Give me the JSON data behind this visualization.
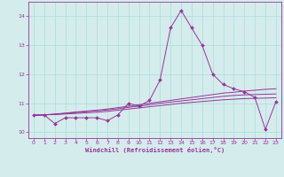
{
  "xlabel": "Windchill (Refroidissement éolien,°C)",
  "background_color": "#d4ecec",
  "line_color": "#993399",
  "grid_color": "#aadddd",
  "xlim": [
    -0.5,
    23.5
  ],
  "ylim": [
    9.8,
    14.5
  ],
  "yticks": [
    10,
    11,
    12,
    13,
    14
  ],
  "xticks": [
    0,
    1,
    2,
    3,
    4,
    5,
    6,
    7,
    8,
    9,
    10,
    11,
    12,
    13,
    14,
    15,
    16,
    17,
    18,
    19,
    20,
    21,
    22,
    23
  ],
  "series": {
    "main": {
      "x": [
        0,
        1,
        2,
        3,
        4,
        5,
        6,
        7,
        8,
        9,
        10,
        11,
        12,
        13,
        14,
        15,
        16,
        17,
        18,
        19,
        20,
        21,
        22,
        23
      ],
      "y": [
        10.6,
        10.6,
        10.3,
        10.5,
        10.5,
        10.5,
        10.5,
        10.4,
        10.6,
        11.0,
        10.9,
        11.1,
        11.8,
        13.6,
        14.2,
        13.6,
        13.0,
        12.0,
        11.65,
        11.5,
        11.4,
        11.2,
        10.1,
        11.05
      ]
    },
    "smooth1": {
      "x": [
        0,
        1,
        2,
        3,
        4,
        5,
        6,
        7,
        8,
        9,
        10,
        11,
        12,
        13,
        14,
        15,
        16,
        17,
        18,
        19,
        20,
        21,
        22,
        23
      ],
      "y": [
        10.58,
        10.6,
        10.63,
        10.66,
        10.7,
        10.73,
        10.76,
        10.8,
        10.85,
        10.9,
        10.95,
        11.0,
        11.05,
        11.1,
        11.15,
        11.2,
        11.25,
        11.3,
        11.35,
        11.38,
        11.42,
        11.45,
        11.48,
        11.5
      ]
    },
    "smooth2": {
      "x": [
        0,
        1,
        2,
        3,
        4,
        5,
        6,
        7,
        8,
        9,
        10,
        11,
        12,
        13,
        14,
        15,
        16,
        17,
        18,
        19,
        20,
        21,
        22,
        23
      ],
      "y": [
        10.58,
        10.6,
        10.62,
        10.65,
        10.68,
        10.71,
        10.74,
        10.77,
        10.81,
        10.86,
        10.9,
        10.95,
        11.0,
        11.04,
        11.08,
        11.12,
        11.16,
        11.2,
        11.24,
        11.27,
        11.29,
        11.3,
        11.31,
        11.32
      ]
    },
    "smooth3": {
      "x": [
        0,
        1,
        2,
        3,
        4,
        5,
        6,
        7,
        8,
        9,
        10,
        11,
        12,
        13,
        14,
        15,
        16,
        17,
        18,
        19,
        20,
        21,
        22,
        23
      ],
      "y": [
        10.58,
        10.6,
        10.61,
        10.63,
        10.65,
        10.67,
        10.69,
        10.72,
        10.76,
        10.8,
        10.84,
        10.88,
        10.92,
        10.96,
        11.0,
        11.03,
        11.06,
        11.09,
        11.12,
        11.14,
        11.16,
        11.17,
        11.18,
        11.19
      ]
    }
  }
}
